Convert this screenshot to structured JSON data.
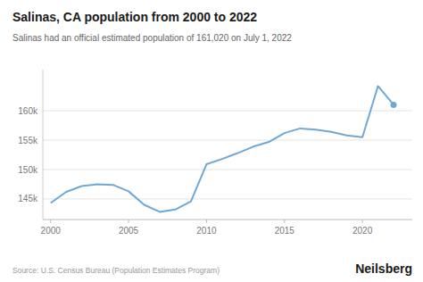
{
  "chart_data": {
    "type": "line",
    "title": "Salinas, CA population from 2000 to 2022",
    "subtitle": "Salinas had an official estimated population of 161,020 on July 1, 2022",
    "annotations": [
      "Source: U.S. Census Bureau (Population Estimates Program)",
      "Neilsberg"
    ],
    "x": [
      2000,
      2001,
      2002,
      2003,
      2004,
      2005,
      2006,
      2007,
      2008,
      2009,
      2010,
      2011,
      2012,
      2013,
      2014,
      2015,
      2016,
      2017,
      2018,
      2019,
      2020,
      2021,
      2022
    ],
    "values": [
      144300,
      146200,
      147200,
      147500,
      147400,
      146300,
      144000,
      142800,
      143200,
      144600,
      150900,
      151800,
      152800,
      153900,
      154700,
      156200,
      157000,
      156800,
      156400,
      155800,
      155500,
      164200,
      161020
    ],
    "color": "#6fa8d6",
    "xlim": [
      1999.5,
      2023.2
    ],
    "ylim": [
      141500,
      167000
    ],
    "xticks": [
      2000,
      2005,
      2010,
      2015,
      2020
    ],
    "yticks": [
      {
        "value": 145000,
        "label": "145k"
      },
      {
        "value": 150000,
        "label": "150k"
      },
      {
        "value": 155000,
        "label": "155k"
      },
      {
        "value": 160000,
        "label": "160k"
      }
    ],
    "grid": true
  }
}
